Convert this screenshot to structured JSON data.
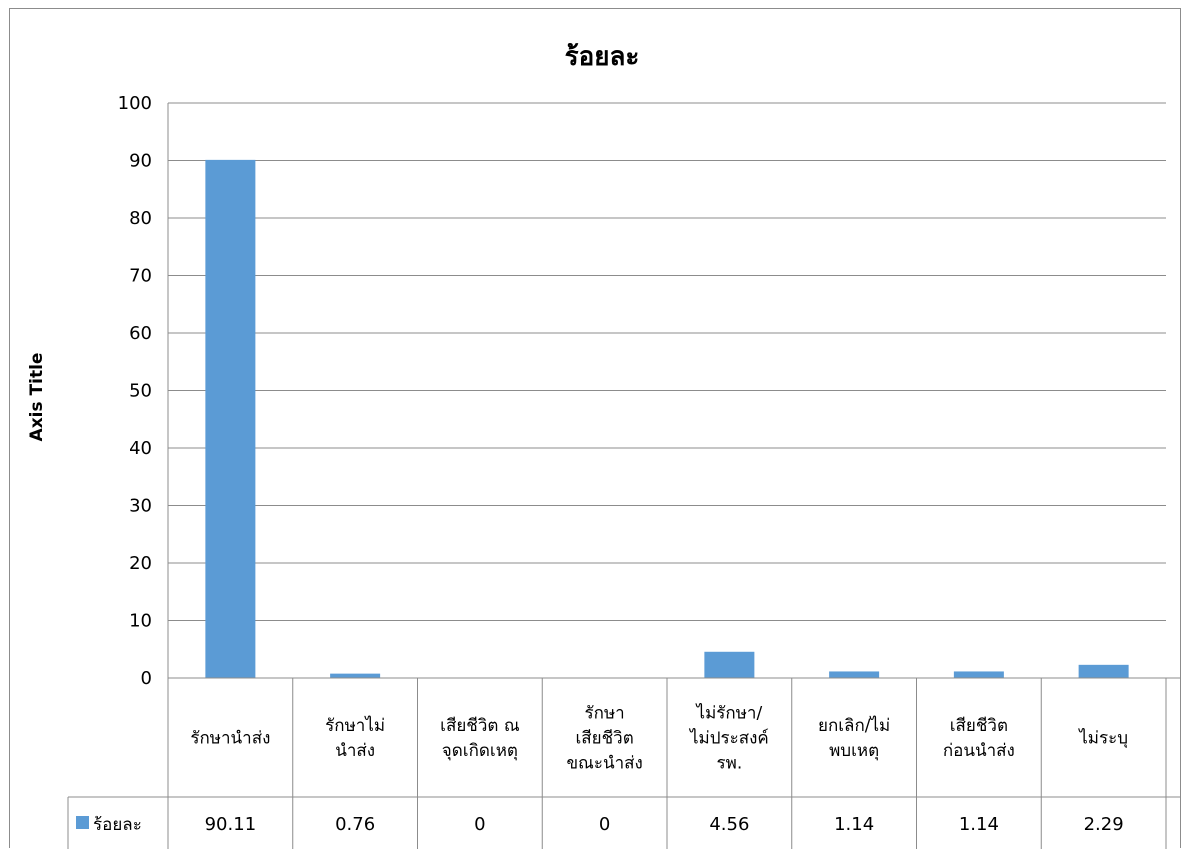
{
  "chart_data": {
    "type": "bar",
    "title": "ร้อยละ",
    "ylabel": "Axis Title",
    "ylim": [
      0,
      100
    ],
    "yticks": [
      0,
      10,
      20,
      30,
      40,
      50,
      60,
      70,
      80,
      90,
      100
    ],
    "grid": true,
    "legend_position": "data-table",
    "categories": [
      "รักษานำส่ง",
      "รักษาไม่นำส่ง",
      "เสียชีวิต ณ จุดเกิดเหตุ",
      "รักษาเสียชีวิตขณะนำส่ง",
      "ไม่รักษา/ไม่ประสงค์ รพ.",
      "ยกเลิก/ไม่พบเหตุ",
      "เสียชีวิตก่อนนำส่ง",
      "ไม่ระบุ"
    ],
    "category_lines": [
      [
        "รักษานำส่ง"
      ],
      [
        "รักษาไม่",
        "นำส่ง"
      ],
      [
        "เสียชีวิต ณ",
        "จุดเกิดเหตุ"
      ],
      [
        "รักษา",
        "เสียชีวิต",
        "ขณะนำส่ง"
      ],
      [
        "ไม่รักษา/",
        "ไม่ประสงค์",
        "รพ."
      ],
      [
        "ยกเลิก/ไม่",
        "พบเหตุ"
      ],
      [
        "เสียชีวิต",
        "ก่อนนำส่ง"
      ],
      [
        "ไม่ระบุ"
      ]
    ],
    "series": [
      {
        "name": "ร้อยละ",
        "color": "#5b9bd5",
        "values": [
          90.11,
          0.76,
          0,
          0,
          4.56,
          1.14,
          1.14,
          2.29
        ],
        "value_labels": [
          "90.11",
          "0.76",
          "0",
          "0",
          "4.56",
          "1.14",
          "1.14",
          "2.29"
        ]
      }
    ]
  }
}
